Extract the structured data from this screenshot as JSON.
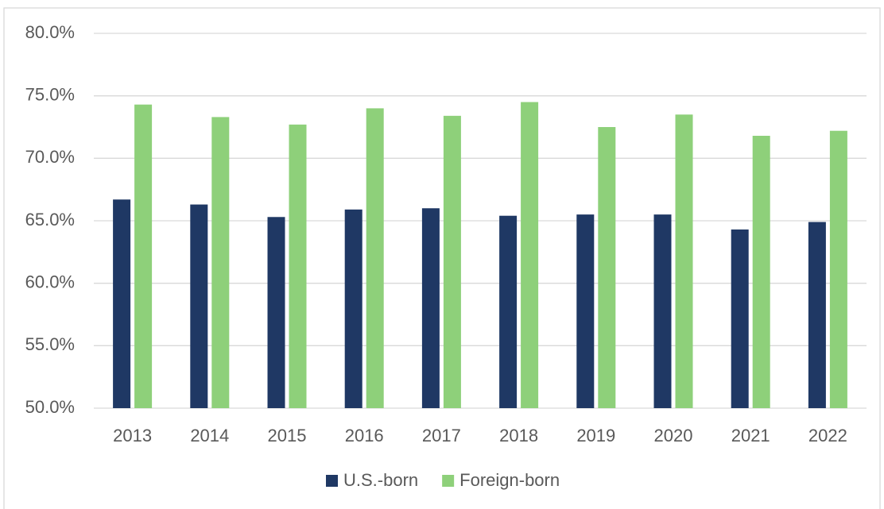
{
  "chart_data": {
    "type": "bar",
    "categories": [
      "2013",
      "2014",
      "2015",
      "2016",
      "2017",
      "2018",
      "2019",
      "2020",
      "2021",
      "2022"
    ],
    "series": [
      {
        "name": "U.S.-born",
        "color": "#1f3864",
        "values": [
          66.7,
          66.3,
          65.3,
          65.9,
          66.0,
          65.4,
          65.5,
          65.5,
          64.3,
          64.9
        ]
      },
      {
        "name": "Foreign-born",
        "color": "#8ed07a",
        "values": [
          74.3,
          73.3,
          72.7,
          74.0,
          73.4,
          74.5,
          72.5,
          73.5,
          71.8,
          72.2
        ]
      }
    ],
    "ylim": [
      50,
      80
    ],
    "yticks": [
      {
        "value": 50,
        "label": "50.0%"
      },
      {
        "value": 55,
        "label": "55.0%"
      },
      {
        "value": 60,
        "label": "60.0%"
      },
      {
        "value": 65,
        "label": "65.0%"
      },
      {
        "value": 70,
        "label": "70.0%"
      },
      {
        "value": 75,
        "label": "75.0%"
      },
      {
        "value": 80,
        "label": "80.0%"
      }
    ],
    "grid": true,
    "legend": "bottom"
  }
}
